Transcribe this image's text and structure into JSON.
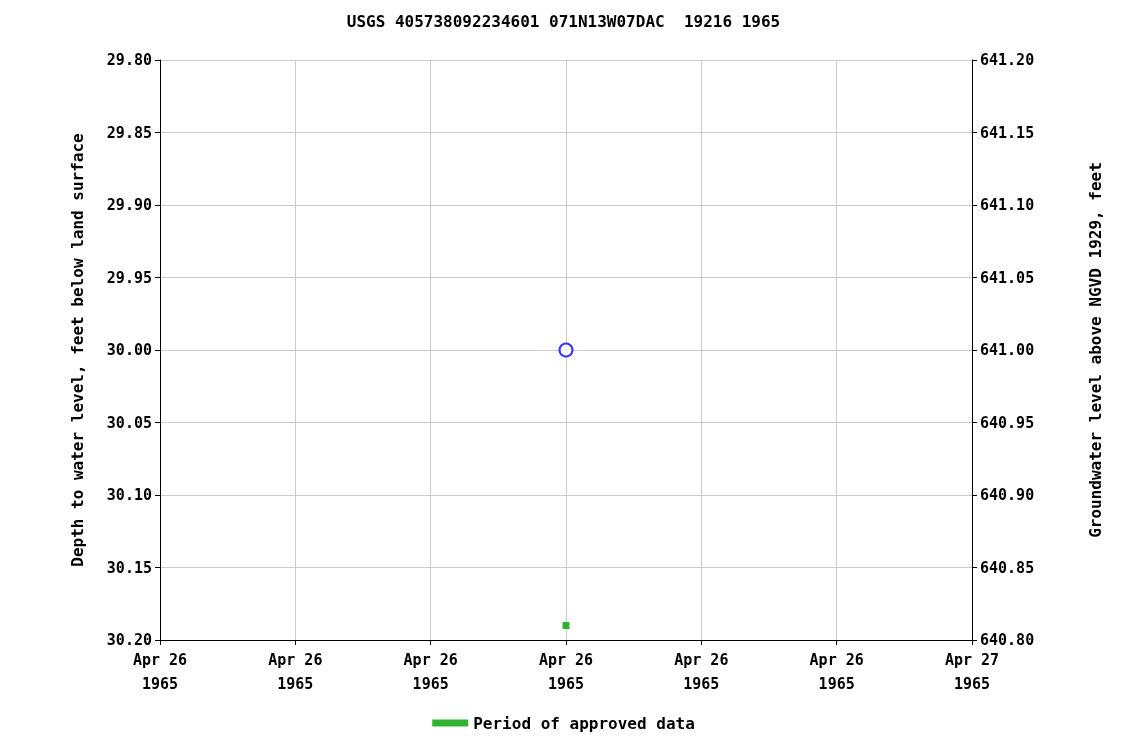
{
  "chart_data": {
    "type": "scatter",
    "title": "USGS 405738092234601 071N13W07DAC  19216 1965",
    "ylabel": "Depth to water level, feet below land surface",
    "y2label": "Groundwater level above NGVD 1929, feet",
    "x": [
      "1965-04-26T12:00"
    ],
    "series": [
      {
        "color": "#0000ff",
        "marker": "circle",
        "values": [
          30.0
        ]
      },
      {
        "name": "Period of approved data",
        "color": "#00a000",
        "marker": "square",
        "values": [
          30.19
        ]
      }
    ],
    "xlim": [
      "1965-04-26T00:00",
      "1965-04-27T00:00"
    ],
    "xticks": [
      {
        "value": "1965-04-26T00:00",
        "label": "Apr 26\n1965"
      },
      {
        "value": "1965-04-26T04:00",
        "label": "Apr 26\n1965"
      },
      {
        "value": "1965-04-26T08:00",
        "label": "Apr 26\n1965"
      },
      {
        "value": "1965-04-26T12:00",
        "label": "Apr 26\n1965"
      },
      {
        "value": "1965-04-26T16:00",
        "label": "Apr 26\n1965"
      },
      {
        "value": "1965-04-26T20:00",
        "label": "Apr 26\n1965"
      },
      {
        "value": "1965-04-27T00:00",
        "label": "Apr 27\n1965"
      }
    ],
    "ylim": [
      30.2,
      29.8
    ],
    "yticks": [
      {
        "value": 29.8,
        "label": "29.80"
      },
      {
        "value": 29.85,
        "label": "29.85"
      },
      {
        "value": 29.9,
        "label": "29.90"
      },
      {
        "value": 29.95,
        "label": "29.95"
      },
      {
        "value": 30.0,
        "label": "30.00"
      },
      {
        "value": 30.05,
        "label": "30.05"
      },
      {
        "value": 30.1,
        "label": "30.10"
      },
      {
        "value": 30.15,
        "label": "30.15"
      },
      {
        "value": 30.2,
        "label": "30.20"
      }
    ],
    "y2lim": [
      640.8,
      641.2
    ],
    "y2ticks": [
      {
        "value": 640.8,
        "label": "640.80"
      },
      {
        "value": 640.85,
        "label": "640.85"
      },
      {
        "value": 640.9,
        "label": "640.90"
      },
      {
        "value": 640.95,
        "label": "640.95"
      },
      {
        "value": 641.0,
        "label": "641.00"
      },
      {
        "value": 641.05,
        "label": "641.05"
      },
      {
        "value": 641.1,
        "label": "641.10"
      },
      {
        "value": 641.15,
        "label": "641.15"
      },
      {
        "value": 641.2,
        "label": "641.20"
      }
    ],
    "grid": true,
    "legend": "bottom"
  }
}
